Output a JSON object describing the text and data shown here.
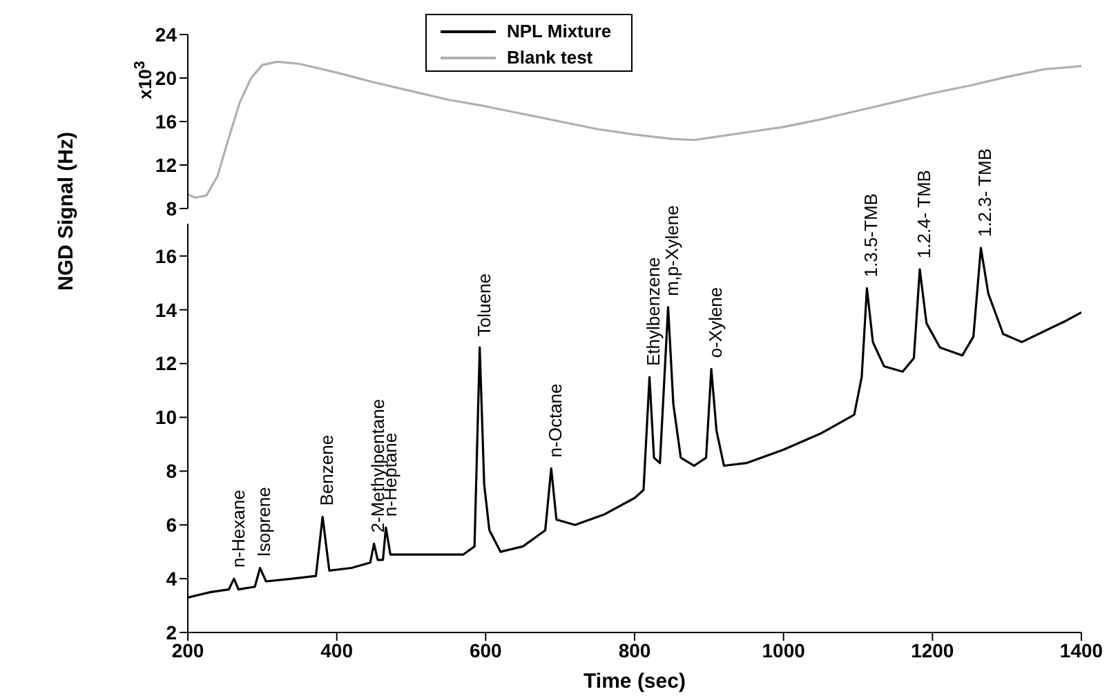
{
  "chart_data": [
    {
      "type": "line",
      "ylabel": "x10$^{3}$",
      "xlim": [
        200,
        1400
      ],
      "ylim": [
        8,
        24
      ],
      "yticks": [
        8,
        12,
        16,
        20,
        24
      ],
      "tick_labels": "y",
      "legend": "top",
      "series": [
        {
          "name": "Blank test",
          "color": "#b0b0b0",
          "x": [
            200,
            210,
            225,
            240,
            255,
            270,
            285,
            300,
            320,
            350,
            400,
            450,
            500,
            550,
            600,
            650,
            700,
            750,
            800,
            850,
            880,
            900,
            950,
            1000,
            1050,
            1100,
            1150,
            1200,
            1250,
            1300,
            1350,
            1400
          ],
          "values": [
            9.3,
            9.0,
            9.2,
            11,
            14.5,
            17.8,
            20,
            21.2,
            21.5,
            21.3,
            20.5,
            19.6,
            18.8,
            18,
            17.4,
            16.7,
            16,
            15.3,
            14.8,
            14.4,
            14.3,
            14.5,
            15,
            15.5,
            16.2,
            17,
            17.8,
            18.6,
            19.3,
            20.1,
            20.8,
            21.1
          ]
        }
      ]
    },
    {
      "type": "line",
      "ylabel": "NGD Signal (Hz)",
      "xlabel": "Time (sec)",
      "xlim": [
        200,
        1400
      ],
      "xticks": [
        200,
        400,
        600,
        800,
        1000,
        1200,
        1400
      ],
      "ylim": [
        2,
        17.2
      ],
      "yticks": [
        2,
        4,
        6,
        8,
        10,
        12,
        14,
        16
      ],
      "legend": "top",
      "series": [
        {
          "name": "NPL Mixture",
          "color": "#000000",
          "x": [
            200,
            230,
            255,
            262,
            268,
            290,
            297,
            305,
            340,
            372,
            381,
            390,
            420,
            445,
            450,
            455,
            462,
            466,
            472,
            520,
            570,
            585,
            592,
            598,
            605,
            620,
            650,
            680,
            688,
            695,
            720,
            760,
            800,
            812,
            820,
            826,
            834,
            845,
            852,
            862,
            880,
            896,
            903,
            910,
            920,
            950,
            1000,
            1050,
            1095,
            1105,
            1112,
            1120,
            1135,
            1160,
            1175,
            1183,
            1192,
            1210,
            1240,
            1255,
            1265,
            1275,
            1295,
            1320,
            1350,
            1380,
            1400
          ],
          "values": [
            3.3,
            3.5,
            3.6,
            4.0,
            3.6,
            3.7,
            4.4,
            3.9,
            4.0,
            4.1,
            6.3,
            4.3,
            4.4,
            4.6,
            5.3,
            4.7,
            4.7,
            5.9,
            4.9,
            4.9,
            4.9,
            5.2,
            12.6,
            7.5,
            5.8,
            5.0,
            5.2,
            5.8,
            8.1,
            6.2,
            6.0,
            6.4,
            7.0,
            7.3,
            11.5,
            8.5,
            8.3,
            14.1,
            10.5,
            8.5,
            8.2,
            8.5,
            11.8,
            9.5,
            8.2,
            8.3,
            8.8,
            9.4,
            10.1,
            11.5,
            14.8,
            12.8,
            11.9,
            11.7,
            12.2,
            15.5,
            13.5,
            12.6,
            12.3,
            13.0,
            16.3,
            14.6,
            13.1,
            12.8,
            13.2,
            13.6,
            13.9
          ]
        }
      ],
      "annotations": [
        {
          "text": "n-Hexane",
          "x": 262,
          "y": 4.0
        },
        {
          "text": "Isoprene",
          "x": 297,
          "y": 4.4
        },
        {
          "text": "Benzene",
          "x": 381,
          "y": 6.3
        },
        {
          "text": "2-Methylpentane",
          "x": 450,
          "y": 5.3
        },
        {
          "text": "n-Heptane",
          "x": 466,
          "y": 5.9
        },
        {
          "text": "Toluene",
          "x": 592,
          "y": 12.6
        },
        {
          "text": "n-Octane",
          "x": 688,
          "y": 8.1
        },
        {
          "text": "Ethylbenzene",
          "x": 820,
          "y": 11.5
        },
        {
          "text": "m,p-Xylene",
          "x": 845,
          "y": 14.1
        },
        {
          "text": "o-Xylene",
          "x": 903,
          "y": 11.8
        },
        {
          "text": "1.3.5-TMB",
          "x": 1112,
          "y": 14.8
        },
        {
          "text": "1.2.4- TMB",
          "x": 1183,
          "y": 15.5
        },
        {
          "text": "1.2.3- TMB",
          "x": 1265,
          "y": 16.3
        }
      ]
    }
  ]
}
